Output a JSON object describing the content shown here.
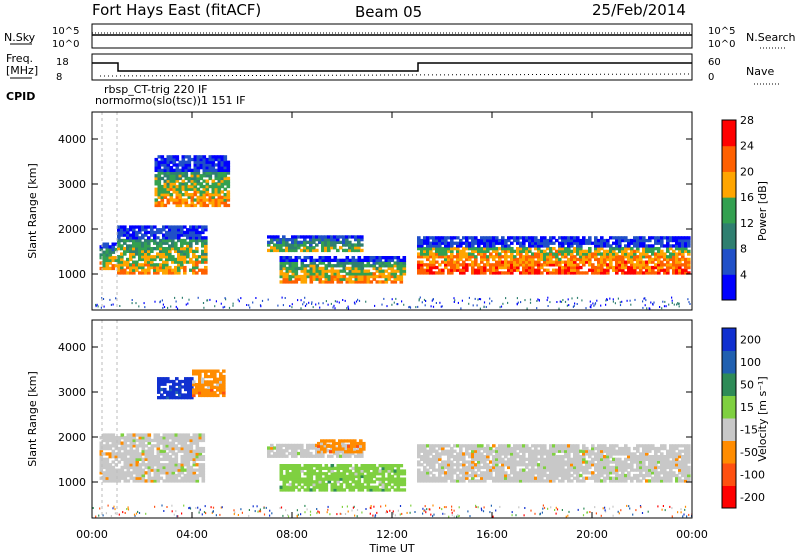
{
  "header": {
    "radar": "Fort Hays East (fitACF)",
    "beam": "Beam 05",
    "date": "25/Feb/2014"
  },
  "top_panels": {
    "nsky_label": "N.Sky",
    "nsky_ticks": [
      "10^5",
      "10^0"
    ],
    "nsearch_label": "N.Search",
    "nsearch_ticks": [
      "10^5",
      "10^0"
    ],
    "freq_label_1": "Freq.",
    "freq_label_2": "[MHz]",
    "freq_ticks": [
      "18",
      "8"
    ],
    "nave_label": "Nave",
    "nave_ticks": [
      "60",
      "0"
    ],
    "cpid_label": "CPID",
    "cpid_texts": [
      "rbsp_CT-trig 220 IF",
      "normormo(slo(tsc))1 151 IF"
    ]
  },
  "chart_data": [
    {
      "type": "heatmap",
      "name": "power",
      "ylabel": "Slant Range [km]",
      "xlabel": "",
      "yticks": [
        "1000",
        "2000",
        "3000",
        "4000"
      ],
      "ylim": [
        200,
        4600
      ],
      "xlim_hours": [
        0,
        24
      ],
      "colorbar": {
        "label": "Power [dB]",
        "ticks": [
          "4",
          "8",
          "12",
          "16",
          "20",
          "24",
          "28"
        ],
        "colors": [
          "#0000ff",
          "#2050c8",
          "#2f7f70",
          "#33a050",
          "#ffa500",
          "#ff6000",
          "#ff0000"
        ]
      },
      "bands": [
        {
          "t0": 0.3,
          "t1": 1.0,
          "r0": 1100,
          "r1": 1700,
          "level": "mid"
        },
        {
          "t0": 1.0,
          "t1": 4.5,
          "r0": 1000,
          "r1": 2050,
          "level": "mid"
        },
        {
          "t0": 2.5,
          "t1": 5.5,
          "r0": 2500,
          "r1": 3600,
          "level": "mid"
        },
        {
          "t0": 7.0,
          "t1": 10.8,
          "r0": 1500,
          "r1": 1850,
          "level": "low"
        },
        {
          "t0": 7.5,
          "t1": 12.5,
          "r0": 800,
          "r1": 1400,
          "level": "mid"
        },
        {
          "t0": 13.0,
          "t1": 23.9,
          "r0": 1000,
          "r1": 1800,
          "level": "high"
        }
      ]
    },
    {
      "type": "heatmap",
      "name": "velocity",
      "ylabel": "Slant Range [km]",
      "xlabel": "Time UT",
      "yticks": [
        "1000",
        "2000",
        "3000",
        "4000"
      ],
      "ylim": [
        200,
        4600
      ],
      "xticks": [
        "00:00",
        "04:00",
        "08:00",
        "12:00",
        "16:00",
        "20:00",
        "00:00"
      ],
      "xlim_hours": [
        0,
        24
      ],
      "colorbar": {
        "label": "Velocity [m s⁻¹]",
        "ticks": [
          "200",
          "100",
          "50",
          "15",
          "-15",
          "-50",
          "-100",
          "-200"
        ],
        "colors": [
          "#1030d0",
          "#2060b0",
          "#2e8b57",
          "#7fd040",
          "#c8c8c8",
          "#ff8c00",
          "#ff5010",
          "#ff0000"
        ]
      },
      "bands": [
        {
          "t0": 0.3,
          "t1": 4.5,
          "r0": 1000,
          "r1": 2050,
          "vel": "gray"
        },
        {
          "t0": 2.6,
          "t1": 4.0,
          "r0": 2850,
          "r1": 3300,
          "vel": "blue"
        },
        {
          "t0": 4.0,
          "t1": 5.3,
          "r0": 2900,
          "r1": 3500,
          "vel": "orange"
        },
        {
          "t0": 7.0,
          "t1": 10.8,
          "r0": 1550,
          "r1": 1850,
          "vel": "gray"
        },
        {
          "t0": 9.0,
          "t1": 10.8,
          "r0": 1650,
          "r1": 1900,
          "vel": "orange"
        },
        {
          "t0": 7.5,
          "t1": 12.5,
          "r0": 800,
          "r1": 1400,
          "vel": "green"
        },
        {
          "t0": 13.0,
          "t1": 23.9,
          "r0": 1000,
          "r1": 1800,
          "vel": "gray"
        }
      ]
    }
  ]
}
